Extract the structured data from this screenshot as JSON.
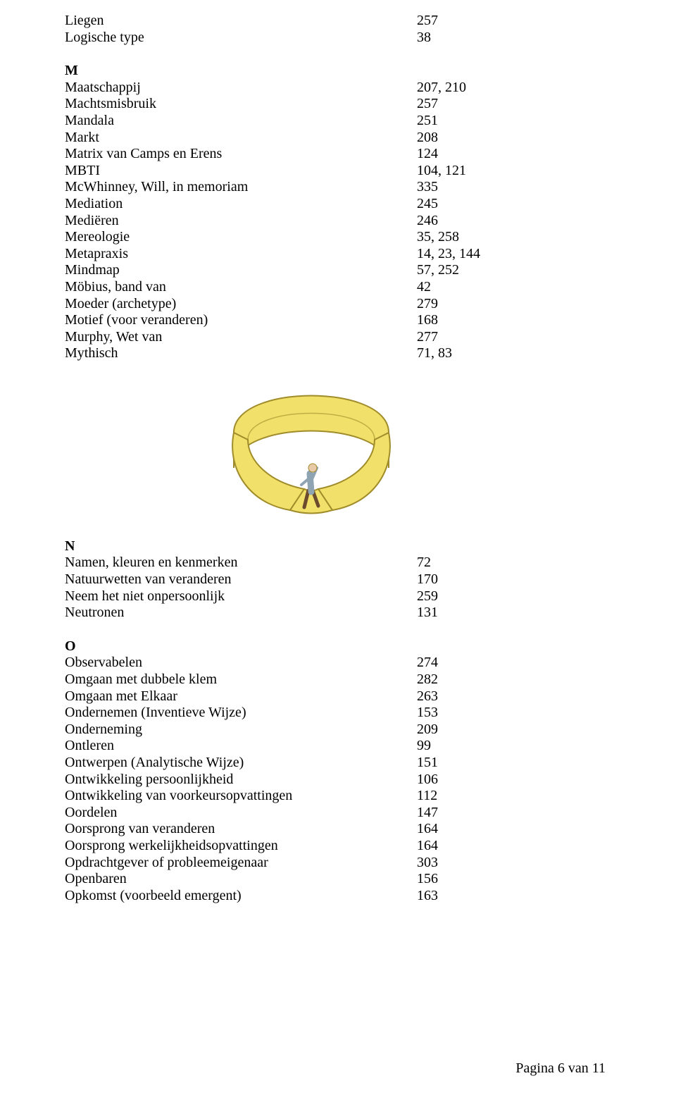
{
  "sections": {
    "top": [
      {
        "term": "Liegen",
        "val": "257"
      },
      {
        "term": "Logische type",
        "val": "38"
      }
    ],
    "M": [
      {
        "term": "Maatschappij",
        "val": "207, 210"
      },
      {
        "term": "Machtsmisbruik",
        "val": "257"
      },
      {
        "term": "Mandala",
        "val": "251"
      },
      {
        "term": "Markt",
        "val": "208"
      },
      {
        "term": "Matrix van Camps en Erens",
        "val": "124"
      },
      {
        "term": "MBTI",
        "val": "104, 121"
      },
      {
        "term": "McWhinney, Will, in memoriam",
        "val": "335"
      },
      {
        "term": "Mediation",
        "val": "245"
      },
      {
        "term": "Mediëren",
        "val": "246"
      },
      {
        "term": "Mereologie",
        "val": "35, 258"
      },
      {
        "term": "Metapraxis",
        "val": "14, 23, 144"
      },
      {
        "term": "Mindmap",
        "val": "57, 252"
      },
      {
        "term": "Möbius, band van",
        "val": "42"
      },
      {
        "term": "Moeder (archetype)",
        "val": "279"
      },
      {
        "term": "Motief (voor veranderen)",
        "val": "168"
      },
      {
        "term": "Murphy, Wet van",
        "val": "277"
      },
      {
        "term": "Mythisch",
        "val": "71, 83"
      }
    ],
    "N": [
      {
        "term": "Namen, kleuren en kenmerken",
        "val": "72"
      },
      {
        "term": "Natuurwetten van veranderen",
        "val": "170"
      },
      {
        "term": "Neem het niet onpersoonlijk",
        "val": "259"
      },
      {
        "term": "Neutronen",
        "val": "131"
      }
    ],
    "O": [
      {
        "term": "Observabelen",
        "val": "274"
      },
      {
        "term": "Omgaan met dubbele klem",
        "val": "282"
      },
      {
        "term": "Omgaan met Elkaar",
        "val": "263"
      },
      {
        "term": "Ondernemen (Inventieve Wijze)",
        "val": "153"
      },
      {
        "term": "Onderneming",
        "val": "209"
      },
      {
        "term": "Ontleren",
        "val": "99"
      },
      {
        "term": "Ontwerpen (Analytische Wijze)",
        "val": "151"
      },
      {
        "term": "Ontwikkeling persoonlijkheid",
        "val": "106"
      },
      {
        "term": "Ontwikkeling van voorkeursopvattingen",
        "val": "112"
      },
      {
        "term": "Oordelen",
        "val": "147"
      },
      {
        "term": "Oorsprong van veranderen",
        "val": "164"
      },
      {
        "term": "Oorsprong werkelijkheidsopvattingen",
        "val": "164"
      },
      {
        "term": "Opdrachtgever of probleemeigenaar",
        "val": "303"
      },
      {
        "term": "Openbaren",
        "val": "156"
      },
      {
        "term": "Opkomst (voorbeeld emergent)",
        "val": "163"
      }
    ]
  },
  "headings": {
    "M": "M",
    "N": "N",
    "O": "O"
  },
  "footer": "Pagina 6 van 11",
  "illustration": {
    "band_fill": "#f1e06a",
    "band_stroke": "#a08c2a",
    "figure_body": "#8fa4b3",
    "figure_trousers": "#6b4a2e",
    "figure_skin": "#e8c9a8",
    "description": "mobius-band-with-walking-figure"
  }
}
